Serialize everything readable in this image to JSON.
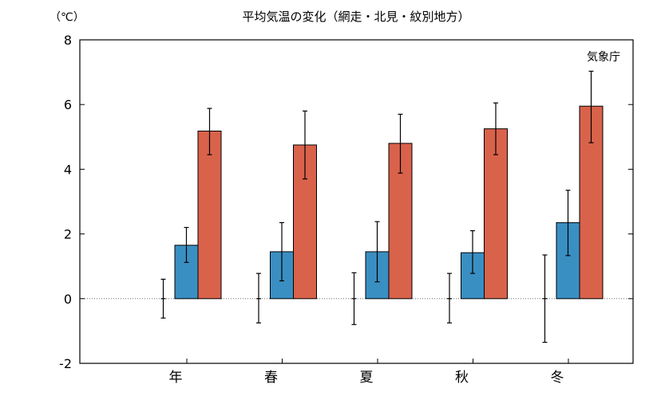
{
  "chart_data": {
    "type": "bar",
    "title": "平均気温の変化（網走・北見・紋別地方）",
    "unit_label": "（℃）",
    "credit": "気象庁",
    "categories": [
      "年",
      "春",
      "夏",
      "秋",
      "冬"
    ],
    "ylim": [
      -2,
      8
    ],
    "yticks": [
      "-2",
      "0",
      "2",
      "4",
      "6",
      "8"
    ],
    "grid": false,
    "zero_line": "dotted",
    "series": [
      {
        "values": [
          0,
          0,
          0,
          0,
          0
        ],
        "err_low": [
          -0.6,
          -0.75,
          -0.8,
          -0.75,
          -1.35
        ],
        "err_high": [
          0.6,
          0.78,
          0.8,
          0.78,
          1.35
        ],
        "color": "#ffffff",
        "style": "errorbar-only"
      },
      {
        "values": [
          1.65,
          1.45,
          1.45,
          1.42,
          2.35
        ],
        "err_low": [
          1.12,
          0.55,
          0.52,
          0.78,
          1.33
        ],
        "err_high": [
          2.2,
          2.35,
          2.38,
          2.1,
          3.35
        ],
        "color": "#3a8fc2"
      },
      {
        "values": [
          5.18,
          4.75,
          4.8,
          5.25,
          5.95
        ],
        "err_low": [
          4.45,
          3.7,
          3.88,
          4.45,
          4.82
        ],
        "err_high": [
          5.88,
          5.8,
          5.7,
          6.05,
          7.03
        ],
        "color": "#d9624b"
      }
    ]
  }
}
